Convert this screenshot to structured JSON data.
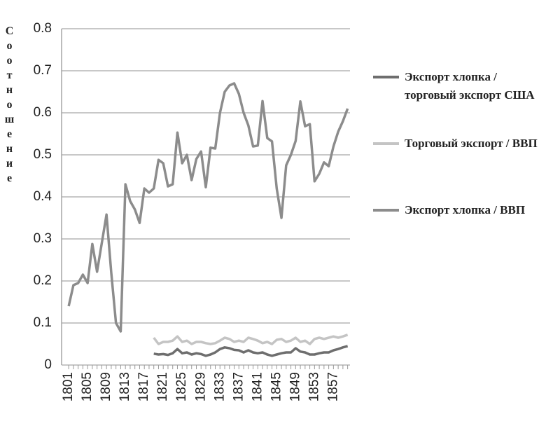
{
  "chart_data": {
    "type": "line",
    "y_label": "Соотношение",
    "x": [
      1801,
      1802,
      1803,
      1804,
      1805,
      1806,
      1807,
      1808,
      1809,
      1810,
      1811,
      1812,
      1813,
      1814,
      1815,
      1816,
      1817,
      1818,
      1819,
      1820,
      1821,
      1822,
      1823,
      1824,
      1825,
      1826,
      1827,
      1828,
      1829,
      1830,
      1831,
      1832,
      1833,
      1834,
      1835,
      1836,
      1837,
      1838,
      1839,
      1840,
      1841,
      1842,
      1843,
      1844,
      1845,
      1846,
      1847,
      1848,
      1849,
      1850,
      1851,
      1852,
      1853,
      1854,
      1855,
      1856,
      1857,
      1858,
      1859,
      1860
    ],
    "series": [
      {
        "name": "Экспорт хлопка / торговый экспорт США",
        "color": "#6e6e6e",
        "values": [
          null,
          null,
          null,
          null,
          null,
          null,
          null,
          null,
          null,
          null,
          null,
          null,
          null,
          null,
          null,
          null,
          null,
          null,
          0.027,
          0.025,
          0.026,
          0.024,
          0.028,
          0.038,
          0.028,
          0.03,
          0.025,
          0.028,
          0.026,
          0.022,
          0.025,
          0.03,
          0.038,
          0.042,
          0.04,
          0.036,
          0.035,
          0.03,
          0.035,
          0.03,
          0.028,
          0.03,
          0.025,
          0.022,
          0.025,
          0.028,
          0.03,
          0.03,
          0.04,
          0.032,
          0.03,
          0.025,
          0.025,
          0.028,
          0.03,
          0.03,
          0.035,
          0.038,
          0.042,
          0.045
        ]
      },
      {
        "name": "Торговый экспорт / ВВП",
        "color": "#c4c4c4",
        "values": [
          null,
          null,
          null,
          null,
          null,
          null,
          null,
          null,
          null,
          null,
          null,
          null,
          null,
          null,
          null,
          null,
          null,
          null,
          0.065,
          0.05,
          0.055,
          0.055,
          0.058,
          0.068,
          0.055,
          0.058,
          0.05,
          0.055,
          0.055,
          0.052,
          0.05,
          0.052,
          0.058,
          0.065,
          0.062,
          0.055,
          0.058,
          0.055,
          0.065,
          0.062,
          0.058,
          0.052,
          0.055,
          0.05,
          0.06,
          0.062,
          0.055,
          0.058,
          0.065,
          0.055,
          0.058,
          0.05,
          0.062,
          0.065,
          0.062,
          0.065,
          0.068,
          0.065,
          0.068,
          0.072
        ]
      },
      {
        "name": "Экспорт хлопка / ВВП",
        "color": "#8c8c8c",
        "values": [
          0.14,
          0.19,
          0.195,
          0.215,
          0.195,
          0.288,
          0.222,
          0.29,
          0.358,
          0.22,
          0.1,
          0.08,
          0.43,
          0.39,
          0.37,
          0.338,
          0.42,
          0.41,
          0.42,
          0.488,
          0.48,
          0.425,
          0.43,
          0.553,
          0.48,
          0.5,
          0.44,
          0.49,
          0.508,
          0.423,
          0.517,
          0.515,
          0.6,
          0.65,
          0.665,
          0.67,
          0.645,
          0.6,
          0.57,
          0.52,
          0.522,
          0.628,
          0.54,
          0.532,
          0.42,
          0.35,
          0.475,
          0.5,
          0.533,
          0.627,
          0.568,
          0.573,
          0.437,
          0.455,
          0.482,
          0.473,
          0.52,
          0.555,
          0.58,
          0.61
        ]
      }
    ],
    "xlim": [
      1799.5,
      1860.5
    ],
    "xticks": [
      1801,
      1805,
      1809,
      1813,
      1817,
      1821,
      1825,
      1829,
      1833,
      1837,
      1841,
      1845,
      1849,
      1853,
      1857
    ],
    "ylim": [
      0,
      0.8
    ],
    "yticks": [
      0,
      0.1,
      0.2,
      0.3,
      0.4,
      0.5,
      0.6,
      0.7,
      0.8
    ],
    "grid": true,
    "legend": "right"
  }
}
